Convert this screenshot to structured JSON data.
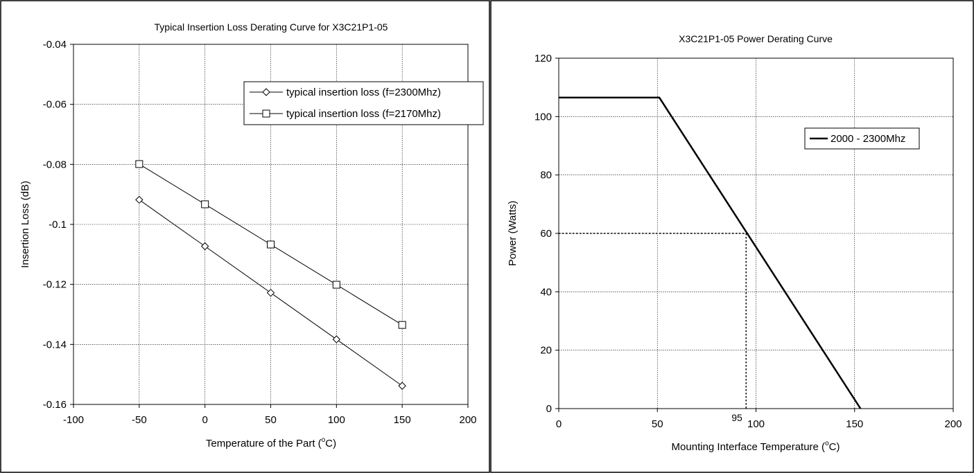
{
  "chart_data": [
    {
      "type": "line",
      "title": "Typical Insertion Loss Derating Curve for X3C21P1-05",
      "xlabel_main": "Temperature of the Part (",
      "xlabel_sup": "o",
      "xlabel_tail": "C)",
      "ylabel": "Insertion Loss (dB)",
      "xlim": [
        -100,
        200
      ],
      "ylim": [
        -0.16,
        -0.04
      ],
      "xticks": [
        -100,
        -50,
        0,
        50,
        100,
        150,
        200
      ],
      "xtick_labels": [
        "-100",
        "-50",
        "0",
        "50",
        "100",
        "150",
        "200"
      ],
      "yticks": [
        -0.16,
        -0.14,
        -0.12,
        -0.1,
        -0.08,
        -0.06,
        -0.04
      ],
      "ytick_labels": [
        "-0.16",
        "-0.14",
        "-0.12",
        "-0.1",
        "-0.08",
        "-0.06",
        "-0.04"
      ],
      "grid": true,
      "legend_position": "top-right",
      "x": [
        -50,
        0,
        50,
        100,
        150
      ],
      "series": [
        {
          "name": "typical insertion loss (f=2300Mhz)",
          "marker": "diamond",
          "values": [
            -0.0918,
            -0.1073,
            -0.1228,
            -0.1383,
            -0.1538
          ]
        },
        {
          "name": "typical insertion loss (f=2170Mhz)",
          "marker": "square",
          "values": [
            -0.0799,
            -0.0933,
            -0.1067,
            -0.1201,
            -0.1335
          ]
        }
      ]
    },
    {
      "type": "line",
      "title": "X3C21P1-05 Power Derating Curve",
      "xlabel_main": "Mounting Interface Temperature (",
      "xlabel_sup": "o",
      "xlabel_tail": "C)",
      "ylabel": "Power (Watts)",
      "xlim": [
        0,
        200
      ],
      "ylim": [
        0,
        120
      ],
      "xticks": [
        0,
        50,
        100,
        150,
        200
      ],
      "xtick_labels": [
        "0",
        "50",
        "100",
        "150",
        "200"
      ],
      "yticks": [
        0,
        20,
        40,
        60,
        80,
        100,
        120
      ],
      "ytick_labels": [
        "0",
        "20",
        "40",
        "60",
        "80",
        "100",
        "120"
      ],
      "grid": true,
      "legend_position": "top-right",
      "series": [
        {
          "name": "2000 - 2300Mhz",
          "x": [
            0,
            51,
            153
          ],
          "values": [
            106.5,
            106.5,
            0
          ]
        }
      ],
      "reference_lines": {
        "x": 95,
        "y": 60
      },
      "annotation": "95"
    }
  ]
}
